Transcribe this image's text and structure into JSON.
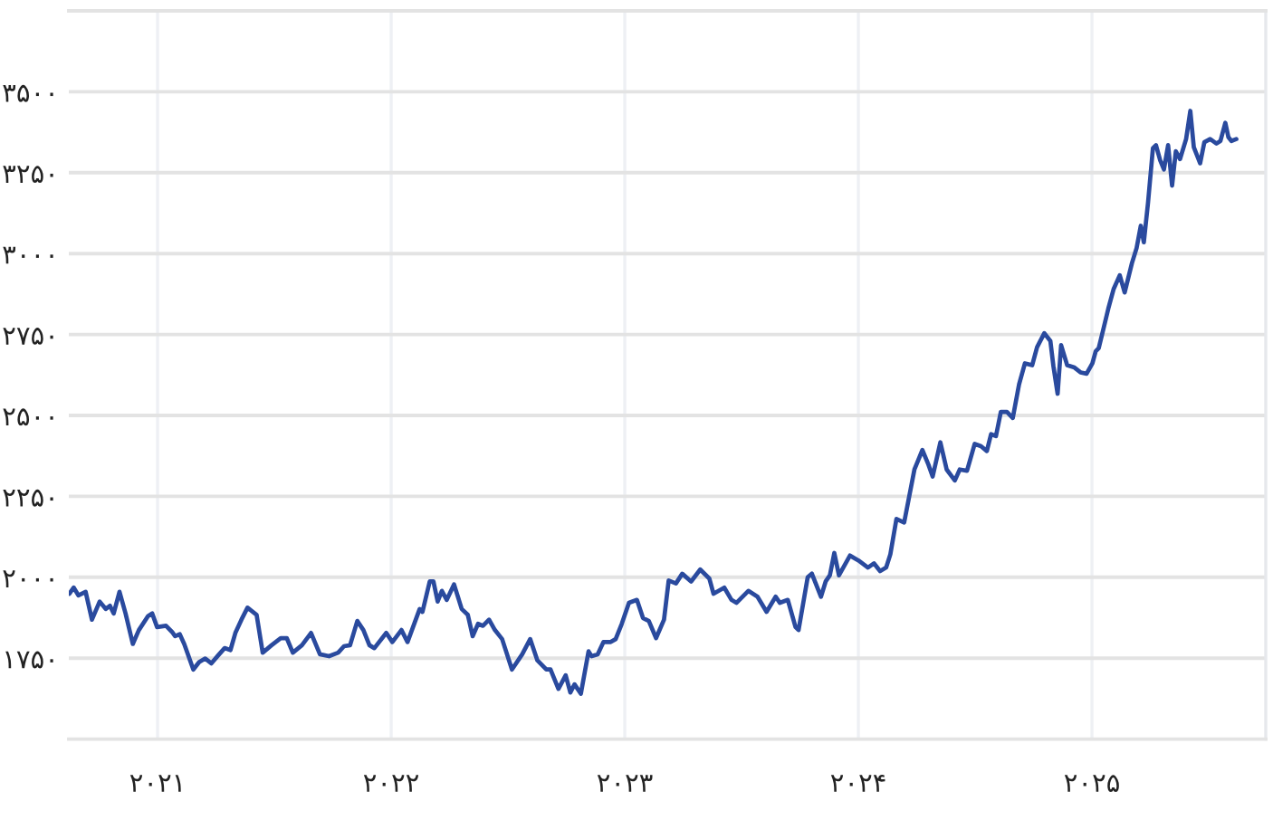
{
  "chart_data": {
    "type": "line",
    "x": [
      2020.622,
      2020.641,
      2020.661,
      2020.692,
      2020.719,
      2020.752,
      2020.778,
      2020.796,
      2020.812,
      2020.837,
      2020.863,
      2020.894,
      2020.92,
      2020.959,
      2020.977,
      2020.998,
      2021.036,
      2021.062,
      2021.075,
      2021.095,
      2021.114,
      2021.153,
      2021.178,
      2021.204,
      2021.23,
      2021.261,
      2021.287,
      2021.312,
      2021.333,
      2021.359,
      2021.385,
      2021.424,
      2021.45,
      2021.488,
      2021.527,
      2021.553,
      2021.579,
      2021.618,
      2021.657,
      2021.695,
      2021.734,
      2021.773,
      2021.798,
      2021.824,
      2021.855,
      2021.881,
      2021.907,
      2021.928,
      2021.979,
      2022.005,
      2022.044,
      2022.07,
      2022.122,
      2022.134,
      2022.165,
      2022.181,
      2022.199,
      2022.217,
      2022.238,
      2022.269,
      2022.302,
      2022.328,
      2022.349,
      2022.372,
      2022.393,
      2022.419,
      2022.444,
      2022.475,
      2022.517,
      2022.561,
      2022.595,
      2022.626,
      2022.664,
      2022.682,
      2022.716,
      2022.747,
      2022.767,
      2022.785,
      2022.812,
      2022.845,
      2022.858,
      2022.884,
      2022.909,
      2022.94,
      2022.961,
      2022.987,
      2023.018,
      2023.052,
      2023.078,
      2023.103,
      2023.134,
      2023.168,
      2023.188,
      2023.219,
      2023.246,
      2023.284,
      2023.323,
      2023.362,
      2023.38,
      2023.426,
      2023.457,
      2023.478,
      2023.529,
      2023.568,
      2023.607,
      2023.646,
      2023.664,
      2023.698,
      2023.731,
      2023.744,
      2023.783,
      2023.801,
      2023.84,
      2023.86,
      2023.878,
      2023.897,
      2023.917,
      2023.964,
      2024.0,
      2024.041,
      2024.067,
      2024.093,
      2024.119,
      2024.137,
      2024.163,
      2024.196,
      2024.24,
      2024.274,
      2024.3,
      2024.318,
      2024.351,
      2024.378,
      2024.413,
      2024.434,
      2024.465,
      2024.498,
      2024.525,
      2024.55,
      2024.568,
      2024.589,
      2024.61,
      2024.636,
      2024.661,
      2024.688,
      2024.713,
      2024.744,
      2024.765,
      2024.796,
      2024.822,
      2024.835,
      2024.853,
      2024.868,
      2024.894,
      2024.925,
      2024.951,
      2024.977,
      2025.002,
      2025.016,
      2025.029,
      2025.049,
      2025.07,
      2025.093,
      2025.119,
      2025.14,
      2025.171,
      2025.191,
      2025.209,
      2025.222,
      2025.24,
      2025.261,
      2025.274,
      2025.292,
      2025.308,
      2025.326,
      2025.343,
      2025.359,
      2025.377,
      2025.403,
      2025.421,
      2025.436,
      2025.463,
      2025.481,
      2025.506,
      2025.533,
      2025.55,
      2025.571,
      2025.584,
      2025.597,
      2025.618
    ],
    "series": [
      {
        "color": "#2a4a9e",
        "values": [
          1949,
          1968,
          1944,
          1955,
          1869,
          1925,
          1902,
          1912,
          1888,
          1955,
          1888,
          1794,
          1837,
          1880,
          1888,
          1846,
          1850,
          1831,
          1818,
          1824,
          1794,
          1715,
          1738,
          1749,
          1734,
          1760,
          1781,
          1775,
          1828,
          1869,
          1906,
          1884,
          1767,
          1790,
          1812,
          1812,
          1767,
          1790,
          1828,
          1762,
          1756,
          1767,
          1787,
          1790,
          1865,
          1837,
          1790,
          1781,
          1828,
          1800,
          1837,
          1800,
          1902,
          1893,
          1987,
          1987,
          1925,
          1958,
          1930,
          1978,
          1902,
          1884,
          1818,
          1856,
          1850,
          1869,
          1837,
          1809,
          1715,
          1762,
          1809,
          1743,
          1715,
          1715,
          1655,
          1697,
          1644,
          1669,
          1640,
          1771,
          1756,
          1762,
          1800,
          1800,
          1809,
          1856,
          1921,
          1930,
          1874,
          1865,
          1812,
          1869,
          1990,
          1981,
          2011,
          1987,
          2024,
          1996,
          1949,
          1968,
          1930,
          1921,
          1958,
          1940,
          1893,
          1940,
          1921,
          1930,
          1846,
          1837,
          2000,
          2011,
          1940,
          1987,
          2006,
          2075,
          2006,
          2067,
          2052,
          2030,
          2043,
          2019,
          2030,
          2071,
          2180,
          2169,
          2333,
          2393,
          2348,
          2311,
          2417,
          2333,
          2299,
          2333,
          2329,
          2412,
          2405,
          2390,
          2442,
          2436,
          2511,
          2511,
          2492,
          2596,
          2661,
          2655,
          2711,
          2754,
          2730,
          2652,
          2567,
          2717,
          2655,
          2648,
          2633,
          2629,
          2661,
          2698,
          2708,
          2767,
          2830,
          2891,
          2933,
          2880,
          2970,
          3017,
          3086,
          3035,
          3157,
          3326,
          3335,
          3288,
          3260,
          3335,
          3210,
          3316,
          3292,
          3354,
          3441,
          3329,
          3279,
          3344,
          3354,
          3340,
          3348,
          3404,
          3360,
          3348,
          3354
        ]
      }
    ],
    "xlim": [
      2020.62,
      2025.744
    ],
    "xticks": [
      {
        "value": 2021,
        "label": "۲۰۲۱"
      },
      {
        "value": 2022,
        "label": "۲۰۲۲"
      },
      {
        "value": 2023,
        "label": "۲۰۲۳"
      },
      {
        "value": 2024,
        "label": "۲۰۲۴"
      },
      {
        "value": 2025,
        "label": "۲۰۲۵"
      }
    ],
    "ylim": [
      1500,
      3750
    ],
    "yticks": [
      {
        "value": 1750,
        "label": "۱۷۵۰"
      },
      {
        "value": 2000,
        "label": "۲۰۰۰"
      },
      {
        "value": 2250,
        "label": "۲۲۵۰"
      },
      {
        "value": 2500,
        "label": "۲۵۰۰"
      },
      {
        "value": 2750,
        "label": "۲۷۵۰"
      },
      {
        "value": 3000,
        "label": "۳۰۰۰"
      },
      {
        "value": 3250,
        "label": "۳۲۵۰"
      },
      {
        "value": 3500,
        "label": "۳۵۰۰"
      }
    ],
    "grid": true
  }
}
